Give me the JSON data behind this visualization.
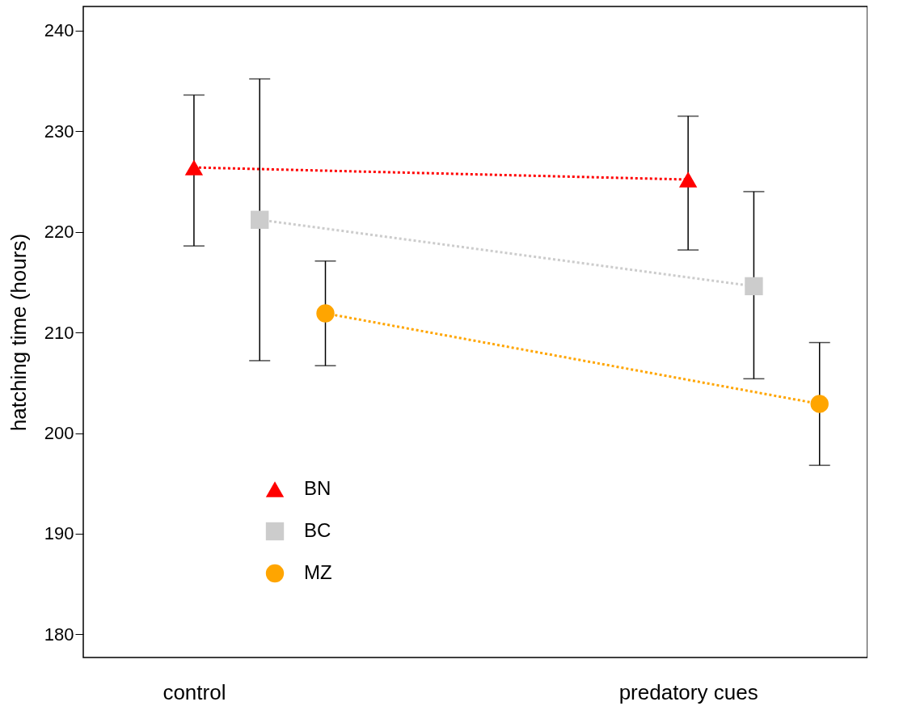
{
  "chart_data": {
    "type": "line",
    "ylabel": "hatching time (hours)",
    "categories": [
      "control",
      "predatory cues"
    ],
    "series": [
      {
        "name": "BN",
        "color": "#ff0000",
        "marker": "triangle",
        "values": [
          226.4,
          225.2
        ],
        "errors": [
          [
            218.6,
            233.6
          ],
          [
            218.2,
            231.5
          ]
        ]
      },
      {
        "name": "BC",
        "color": "#cccccc",
        "marker": "square",
        "values": [
          221.2,
          214.6
        ],
        "errors": [
          [
            207.2,
            235.2
          ],
          [
            205.4,
            224.0
          ]
        ]
      },
      {
        "name": "MZ",
        "color": "#ffa500",
        "marker": "circle",
        "values": [
          211.9,
          202.9
        ],
        "errors": [
          [
            206.7,
            217.1
          ],
          [
            196.8,
            209.0
          ]
        ]
      }
    ],
    "ylim": [
      177.7,
      242.4
    ],
    "yticks": [
      180,
      190,
      200,
      210,
      220,
      230,
      240
    ],
    "line_style": "dotted",
    "grid": false,
    "legend": "bottom left"
  }
}
